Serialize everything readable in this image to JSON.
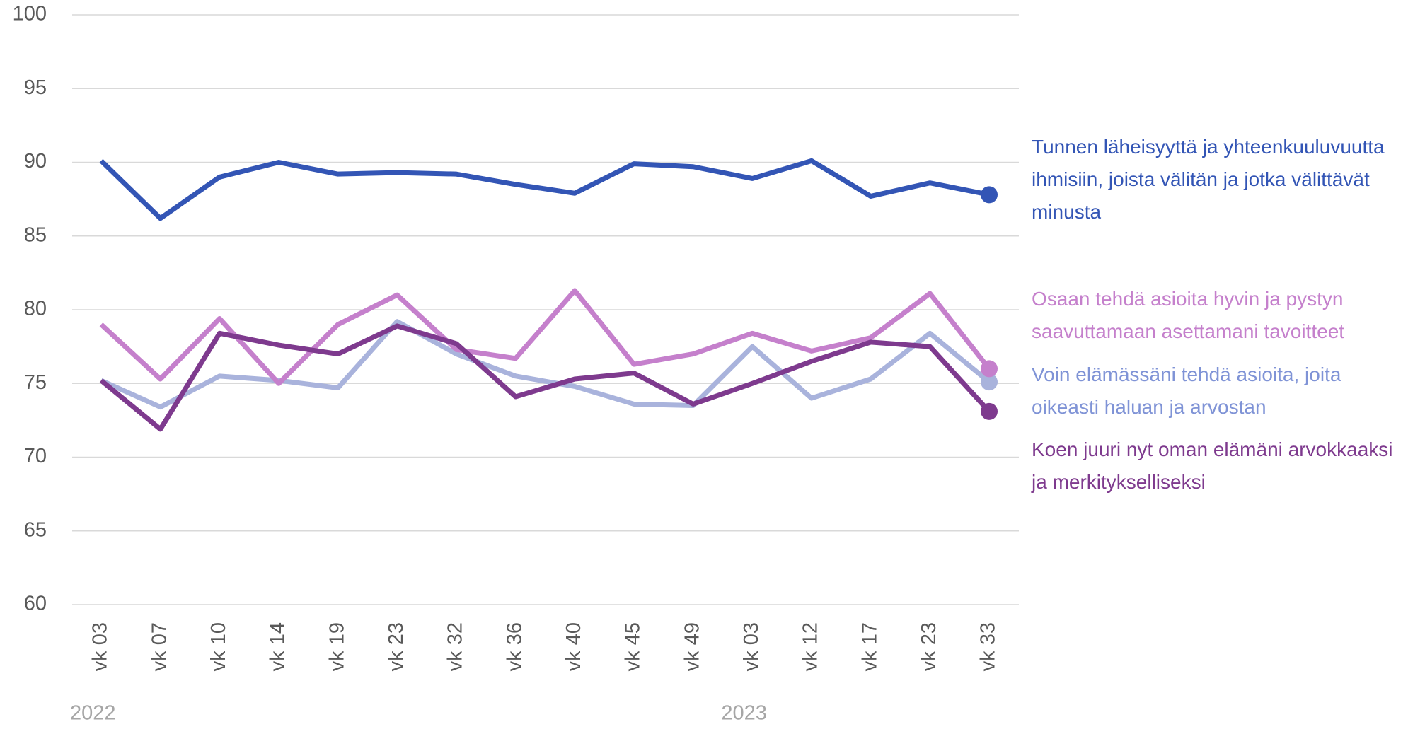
{
  "chart_data": {
    "type": "line",
    "categories": [
      "vk 03",
      "vk 07",
      "vk 10",
      "vk 14",
      "vk 19",
      "vk 23",
      "vk 32",
      "vk 36",
      "vk 40",
      "vk 45",
      "vk 49",
      "vk 03",
      "vk 12",
      "vk 17",
      "vk 23",
      "vk 33"
    ],
    "groups": [
      {
        "label": "2022",
        "start": 0
      },
      {
        "label": "2023",
        "start": 11
      }
    ],
    "series": [
      {
        "name": "Tunnen läheisyyttä ja yhteenkuuluvuutta ihmisiin, joista välitän ja jotka välittävät minusta",
        "color": "#3355b5",
        "values": [
          90.1,
          86.2,
          89.0,
          90.0,
          89.2,
          89.3,
          89.2,
          88.5,
          87.9,
          89.9,
          89.7,
          88.9,
          90.1,
          87.7,
          88.6,
          87.8
        ]
      },
      {
        "name": "Osaan tehdä asioita hyvin ja pystyn saavuttamaan asettamani tavoitteet",
        "color": "#c580cc",
        "values": [
          79.0,
          75.3,
          79.4,
          75.0,
          79.0,
          81.0,
          77.3,
          76.7,
          81.3,
          76.3,
          77.0,
          78.4,
          77.2,
          78.1,
          81.1,
          76.0
        ]
      },
      {
        "name": "Voin elämässäni tehdä asioita, joita oikeasti haluan ja arvostan",
        "color": "#a9b3dc",
        "values": [
          75.2,
          73.4,
          75.5,
          75.2,
          74.7,
          79.2,
          77.0,
          75.5,
          74.8,
          73.6,
          73.5,
          77.5,
          74.0,
          75.3,
          78.4,
          75.1
        ]
      },
      {
        "name": "Koen juuri nyt oman elämäni arvokkaaksi ja merkitykselliseksi",
        "color": "#7e3a8e",
        "values": [
          75.2,
          71.9,
          78.4,
          77.6,
          77.0,
          78.9,
          77.7,
          74.1,
          75.3,
          75.7,
          73.6,
          75.0,
          76.5,
          77.8,
          77.5,
          73.1
        ]
      }
    ],
    "ylim": [
      60,
      100
    ],
    "yticks": [
      60,
      65,
      70,
      75,
      80,
      85,
      90,
      95,
      100
    ],
    "grid": true
  }
}
